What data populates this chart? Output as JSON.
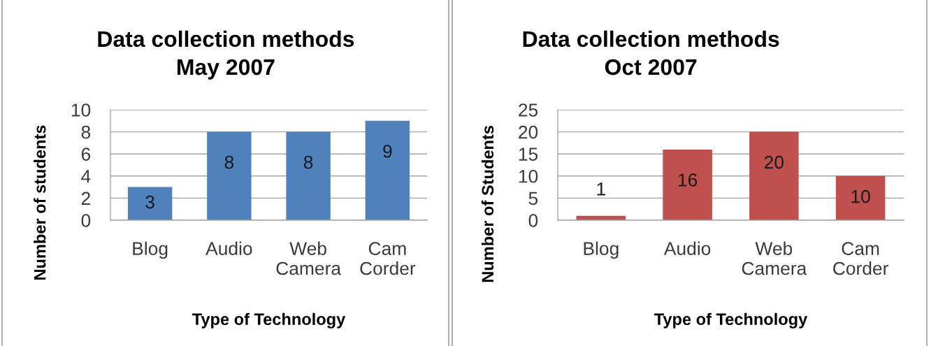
{
  "chart_data": [
    {
      "type": "bar",
      "title": "Data collection methods\nMay 2007",
      "xlabel": "Type of Technology",
      "ylabel": "Number of students",
      "categories": [
        "Blog",
        "Audio",
        "Web\nCamera",
        "Cam\nCorder"
      ],
      "values": [
        3,
        8,
        8,
        9
      ],
      "color": "#4f81bd",
      "ylim": [
        0,
        10
      ],
      "yticks": [
        0,
        2,
        4,
        6,
        8,
        10
      ],
      "grid": "y",
      "data_labels": true
    },
    {
      "type": "bar",
      "title": "Data collection methods\nOct 2007",
      "xlabel": "Type of Technology",
      "ylabel": "Number of Students",
      "categories": [
        "Blog",
        "Audio",
        "Web\nCamera",
        "Cam\nCorder"
      ],
      "values": [
        1,
        16,
        20,
        10
      ],
      "color": "#c0504d",
      "ylim": [
        0,
        25
      ],
      "yticks": [
        0,
        5,
        10,
        15,
        20,
        25
      ],
      "grid": "y",
      "data_labels": true
    }
  ]
}
